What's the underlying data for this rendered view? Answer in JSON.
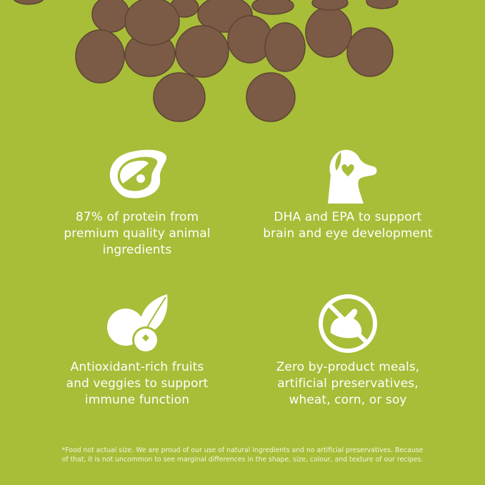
{
  "colors": {
    "background": "#a8bd38",
    "kibble": "#7b5b46",
    "text": "#ffffff"
  },
  "features": [
    {
      "icon": "steak-icon",
      "lines": [
        "87% of protein from",
        "premium quality animal",
        "ingredients"
      ]
    },
    {
      "icon": "dog-heart-icon",
      "lines": [
        "DHA and EPA to support",
        "brain and eye development"
      ]
    },
    {
      "icon": "fruit-veggie-icon",
      "lines": [
        "Antioxidant-rich fruits",
        "and veggies to support",
        "immune function"
      ]
    },
    {
      "icon": "no-byproduct-icon",
      "lines": [
        "Zero by-product meals,",
        "artificial preservatives,",
        "wheat, corn, or soy"
      ]
    }
  ],
  "footnote": {
    "lines": [
      "*Food not actual size. We are proud of our use of natural ingredients and no artificial preservatives. Because",
      "of that, it is not uncommon to see marginal differences in the shape, size, colour, and texture of our recipes."
    ]
  }
}
